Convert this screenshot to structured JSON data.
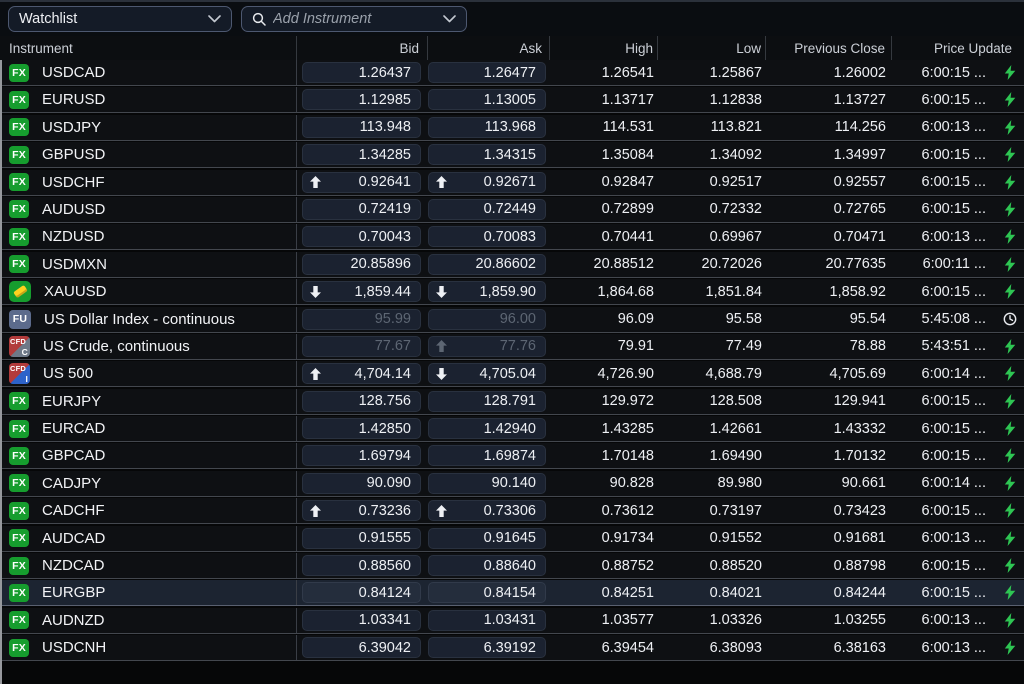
{
  "toolbar": {
    "watchlist": {
      "label": "Watchlist"
    },
    "add_instrument": {
      "placeholder": "Add Instrument"
    }
  },
  "columns": {
    "instrument": "Instrument",
    "bid": "Bid",
    "ask": "Ask",
    "high": "High",
    "low": "Low",
    "prev_close": "Previous Close",
    "price_update": "Price Update"
  },
  "badges": {
    "fx": {
      "label": "FX"
    },
    "fu": {
      "label": "FU"
    },
    "gold": {
      "label": ""
    },
    "cfd_c": {
      "top": "CFD",
      "corner": "C"
    },
    "cfd_i": {
      "top": "CFD",
      "corner": "I"
    }
  },
  "colors": {
    "accent_green": "#2ec653",
    "badge_green": "#169d2e",
    "badge_slate": "#5c6b8c",
    "badge_red": "#b23b3b",
    "badge_blue": "#2d62c9",
    "badge_gray": "#6e7988",
    "gold_bar": "#ffd21f",
    "selected_row_bg": "#1c2431"
  },
  "rows": [
    {
      "badge": "fx",
      "name": "USDCAD",
      "bid": "1.26437",
      "ask": "1.26477",
      "bid_arrow": "",
      "ask_arrow": "",
      "high": "1.26541",
      "low": "1.25867",
      "prev_close": "1.26002",
      "time": "6:00:15 ...",
      "update": "live",
      "muted": false,
      "selected": false
    },
    {
      "badge": "fx",
      "name": "EURUSD",
      "bid": "1.12985",
      "ask": "1.13005",
      "bid_arrow": "",
      "ask_arrow": "",
      "high": "1.13717",
      "low": "1.12838",
      "prev_close": "1.13727",
      "time": "6:00:15 ...",
      "update": "live",
      "muted": false,
      "selected": false
    },
    {
      "badge": "fx",
      "name": "USDJPY",
      "bid": "113.948",
      "ask": "113.968",
      "bid_arrow": "",
      "ask_arrow": "",
      "high": "114.531",
      "low": "113.821",
      "prev_close": "114.256",
      "time": "6:00:13 ...",
      "update": "live",
      "muted": false,
      "selected": false
    },
    {
      "badge": "fx",
      "name": "GBPUSD",
      "bid": "1.34285",
      "ask": "1.34315",
      "bid_arrow": "",
      "ask_arrow": "",
      "high": "1.35084",
      "low": "1.34092",
      "prev_close": "1.34997",
      "time": "6:00:15 ...",
      "update": "live",
      "muted": false,
      "selected": false
    },
    {
      "badge": "fx",
      "name": "USDCHF",
      "bid": "0.92641",
      "ask": "0.92671",
      "bid_arrow": "up",
      "ask_arrow": "up",
      "high": "0.92847",
      "low": "0.92517",
      "prev_close": "0.92557",
      "time": "6:00:15 ...",
      "update": "live",
      "muted": false,
      "selected": false
    },
    {
      "badge": "fx",
      "name": "AUDUSD",
      "bid": "0.72419",
      "ask": "0.72449",
      "bid_arrow": "",
      "ask_arrow": "",
      "high": "0.72899",
      "low": "0.72332",
      "prev_close": "0.72765",
      "time": "6:00:15 ...",
      "update": "live",
      "muted": false,
      "selected": false
    },
    {
      "badge": "fx",
      "name": "NZDUSD",
      "bid": "0.70043",
      "ask": "0.70083",
      "bid_arrow": "",
      "ask_arrow": "",
      "high": "0.70441",
      "low": "0.69967",
      "prev_close": "0.70471",
      "time": "6:00:13 ...",
      "update": "live",
      "muted": false,
      "selected": false
    },
    {
      "badge": "fx",
      "name": "USDMXN",
      "bid": "20.85896",
      "ask": "20.86602",
      "bid_arrow": "",
      "ask_arrow": "",
      "high": "20.88512",
      "low": "20.72026",
      "prev_close": "20.77635",
      "time": "6:00:11 ...",
      "update": "live",
      "muted": false,
      "selected": false
    },
    {
      "badge": "gold",
      "name": "XAUUSD",
      "bid": "1,859.44",
      "ask": "1,859.90",
      "bid_arrow": "down",
      "ask_arrow": "down",
      "high": "1,864.68",
      "low": "1,851.84",
      "prev_close": "1,858.92",
      "time": "6:00:15 ...",
      "update": "live",
      "muted": false,
      "selected": false
    },
    {
      "badge": "fu",
      "name": "US Dollar Index - continuous",
      "bid": "95.99",
      "ask": "96.00",
      "bid_arrow": "",
      "ask_arrow": "",
      "high": "96.09",
      "low": "95.58",
      "prev_close": "95.54",
      "time": "5:45:08 ...",
      "update": "delayed",
      "muted": true,
      "selected": false
    },
    {
      "badge": "cfd_c",
      "name": "US Crude, continuous",
      "bid": "77.67",
      "ask": "77.76",
      "bid_arrow": "",
      "ask_arrow": "up",
      "high": "79.91",
      "low": "77.49",
      "prev_close": "78.88",
      "time": "5:43:51 ...",
      "update": "live",
      "muted": true,
      "selected": false
    },
    {
      "badge": "cfd_i",
      "name": "US 500",
      "bid": "4,704.14",
      "ask": "4,705.04",
      "bid_arrow": "up",
      "ask_arrow": "down",
      "high": "4,726.90",
      "low": "4,688.79",
      "prev_close": "4,705.69",
      "time": "6:00:14 ...",
      "update": "live",
      "muted": false,
      "selected": false
    },
    {
      "badge": "fx",
      "name": "EURJPY",
      "bid": "128.756",
      "ask": "128.791",
      "bid_arrow": "",
      "ask_arrow": "",
      "high": "129.972",
      "low": "128.508",
      "prev_close": "129.941",
      "time": "6:00:15 ...",
      "update": "live",
      "muted": false,
      "selected": false
    },
    {
      "badge": "fx",
      "name": "EURCAD",
      "bid": "1.42850",
      "ask": "1.42940",
      "bid_arrow": "",
      "ask_arrow": "",
      "high": "1.43285",
      "low": "1.42661",
      "prev_close": "1.43332",
      "time": "6:00:15 ...",
      "update": "live",
      "muted": false,
      "selected": false
    },
    {
      "badge": "fx",
      "name": "GBPCAD",
      "bid": "1.69794",
      "ask": "1.69874",
      "bid_arrow": "",
      "ask_arrow": "",
      "high": "1.70148",
      "low": "1.69490",
      "prev_close": "1.70132",
      "time": "6:00:15 ...",
      "update": "live",
      "muted": false,
      "selected": false
    },
    {
      "badge": "fx",
      "name": "CADJPY",
      "bid": "90.090",
      "ask": "90.140",
      "bid_arrow": "",
      "ask_arrow": "",
      "high": "90.828",
      "low": "89.980",
      "prev_close": "90.661",
      "time": "6:00:14 ...",
      "update": "live",
      "muted": false,
      "selected": false
    },
    {
      "badge": "fx",
      "name": "CADCHF",
      "bid": "0.73236",
      "ask": "0.73306",
      "bid_arrow": "up",
      "ask_arrow": "up",
      "high": "0.73612",
      "low": "0.73197",
      "prev_close": "0.73423",
      "time": "6:00:15 ...",
      "update": "live",
      "muted": false,
      "selected": false
    },
    {
      "badge": "fx",
      "name": "AUDCAD",
      "bid": "0.91555",
      "ask": "0.91645",
      "bid_arrow": "",
      "ask_arrow": "",
      "high": "0.91734",
      "low": "0.91552",
      "prev_close": "0.91681",
      "time": "6:00:13 ...",
      "update": "live",
      "muted": false,
      "selected": false
    },
    {
      "badge": "fx",
      "name": "NZDCAD",
      "bid": "0.88560",
      "ask": "0.88640",
      "bid_arrow": "",
      "ask_arrow": "",
      "high": "0.88752",
      "low": "0.88520",
      "prev_close": "0.88798",
      "time": "6:00:15 ...",
      "update": "live",
      "muted": false,
      "selected": false
    },
    {
      "badge": "fx",
      "name": "EURGBP",
      "bid": "0.84124",
      "ask": "0.84154",
      "bid_arrow": "",
      "ask_arrow": "",
      "high": "0.84251",
      "low": "0.84021",
      "prev_close": "0.84244",
      "time": "6:00:15 ...",
      "update": "live",
      "muted": false,
      "selected": true
    },
    {
      "badge": "fx",
      "name": "AUDNZD",
      "bid": "1.03341",
      "ask": "1.03431",
      "bid_arrow": "",
      "ask_arrow": "",
      "high": "1.03577",
      "low": "1.03326",
      "prev_close": "1.03255",
      "time": "6:00:13 ...",
      "update": "live",
      "muted": false,
      "selected": false
    },
    {
      "badge": "fx",
      "name": "USDCNH",
      "bid": "6.39042",
      "ask": "6.39192",
      "bid_arrow": "",
      "ask_arrow": "",
      "high": "6.39454",
      "low": "6.38093",
      "prev_close": "6.38163",
      "time": "6:00:13 ...",
      "update": "live",
      "muted": false,
      "selected": false
    }
  ]
}
